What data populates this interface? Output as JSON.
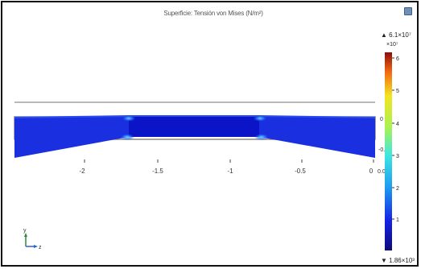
{
  "plot": {
    "title": "Superficie: Tensión von Mises (N/m²)",
    "x_ticks": [
      "-2",
      "-1.5",
      "-1",
      "-0.5",
      "0"
    ],
    "overlap_tick_labels": [
      {
        "text": "0",
        "pos": "upper"
      },
      {
        "text": "-0.5",
        "pos": "mid"
      },
      {
        "text": "0.02",
        "pos": "tick"
      }
    ]
  },
  "legend": {
    "max_label": "▲ 6.1×10⁷",
    "multiplier": "×10⁷",
    "min_label": "▼ 1.86×10³",
    "ticks": [
      "6",
      "5",
      "4",
      "3",
      "2",
      "1"
    ]
  },
  "axes_triad": {
    "y_label": "y",
    "z_label": "z"
  },
  "colors": {
    "deep_blue": "#0c14c8",
    "beam_blue": "#1a2fe0",
    "highlight": "#3fb0ff",
    "outline": "#9a9a9a"
  }
}
